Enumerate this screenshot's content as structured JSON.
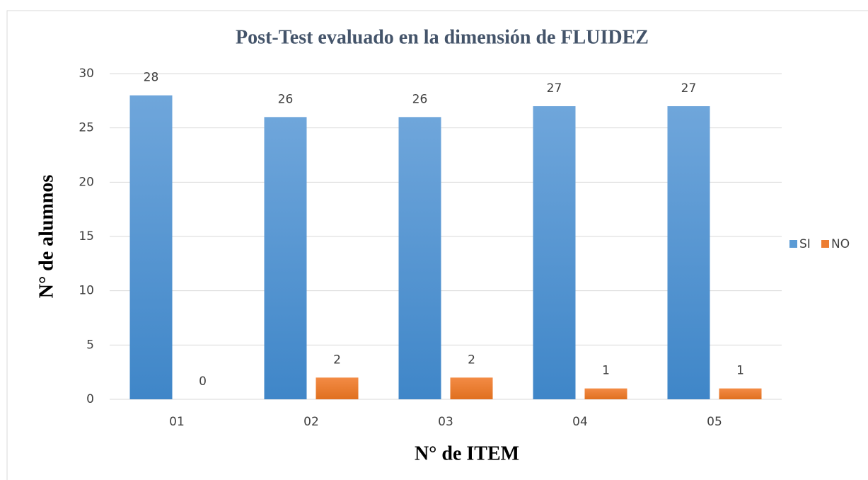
{
  "chart_data": {
    "type": "bar",
    "title": "Post-Test evaluado en la dimensión de FLUIDEZ",
    "x_label": "N° de ITEM",
    "y_label": "N° de alumnos",
    "categories": [
      "01",
      "02",
      "03",
      "04",
      "05"
    ],
    "series": [
      {
        "name": "SI",
        "color": "#5b9bd5",
        "values": [
          28,
          26,
          26,
          27,
          27
        ]
      },
      {
        "name": "NO",
        "color": "#ed7d31",
        "values": [
          0,
          2,
          2,
          1,
          1
        ]
      }
    ],
    "ylim": [
      0,
      30
    ],
    "yticks": [
      0,
      5,
      10,
      15,
      20,
      25,
      30
    ],
    "grid": true,
    "legend": "right"
  }
}
